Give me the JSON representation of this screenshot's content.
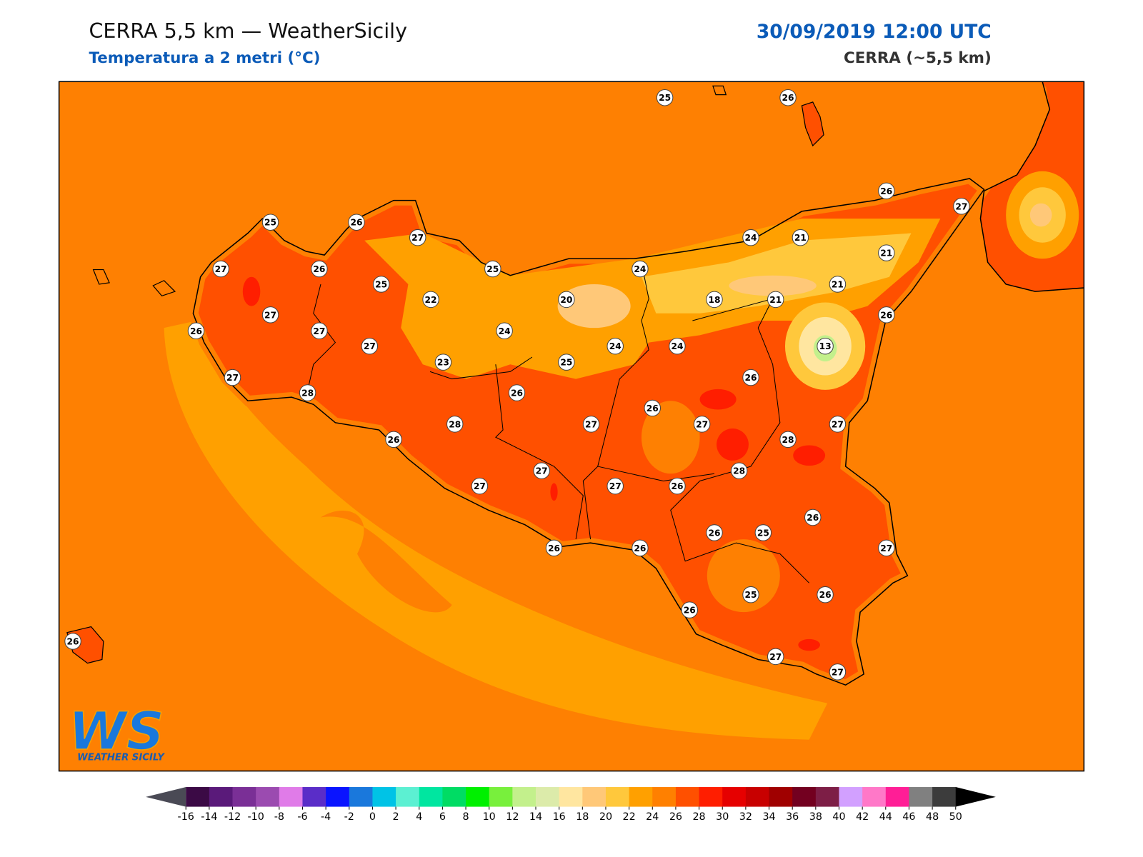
{
  "header": {
    "title": "CERRA 5,5 km — WeatherSicily",
    "subtitle": "Temperatura a 2 metri (°C)",
    "datetime": "30/09/2019 12:00 UTC",
    "model": "CERRA (~5,5 km)"
  },
  "stations": [
    25,
    26,
    26,
    27,
    25,
    26,
    27,
    24,
    21,
    21,
    27,
    26,
    25,
    24,
    25,
    21,
    22,
    20,
    18,
    21,
    27,
    26,
    26,
    27,
    24,
    27,
    24,
    24,
    13,
    23,
    25,
    27,
    26,
    28,
    26,
    26,
    28,
    27,
    27,
    27,
    26,
    28,
    27,
    28,
    27,
    27,
    26,
    26,
    26,
    25,
    26,
    26,
    27,
    25,
    26,
    26,
    26,
    27,
    27
  ],
  "colorbar": {
    "ticks": [
      -16,
      -14,
      -12,
      -10,
      -8,
      -6,
      -4,
      -2,
      0,
      2,
      4,
      6,
      8,
      10,
      12,
      14,
      16,
      18,
      20,
      22,
      24,
      26,
      28,
      30,
      32,
      34,
      36,
      38,
      40,
      42,
      44,
      46,
      48,
      50
    ],
    "colors": [
      "#3b0a45",
      "#5a1a7a",
      "#7a2f96",
      "#9b4bb0",
      "#e07be8",
      "#5a2dc8",
      "#0a14ff",
      "#1a78dc",
      "#00c3e6",
      "#5cf0d2",
      "#00e6a0",
      "#00dc64",
      "#00f000",
      "#78f03c",
      "#c3f08c",
      "#dcebaa",
      "#ffe6a0",
      "#ffc878",
      "#ffc83c",
      "#ffa000",
      "#ff8000",
      "#ff5000",
      "#ff1e00",
      "#e60000",
      "#c80000",
      "#a00000",
      "#730020",
      "#7d1e46",
      "#d2a0ff",
      "#ff78c8",
      "#ff1e96",
      "#808080",
      "#3c3c3c"
    ],
    "under_color": "#4a4a55",
    "over_color": "#000000"
  },
  "logo": {
    "mark": "WS",
    "name": "WEATHER SICILY"
  }
}
